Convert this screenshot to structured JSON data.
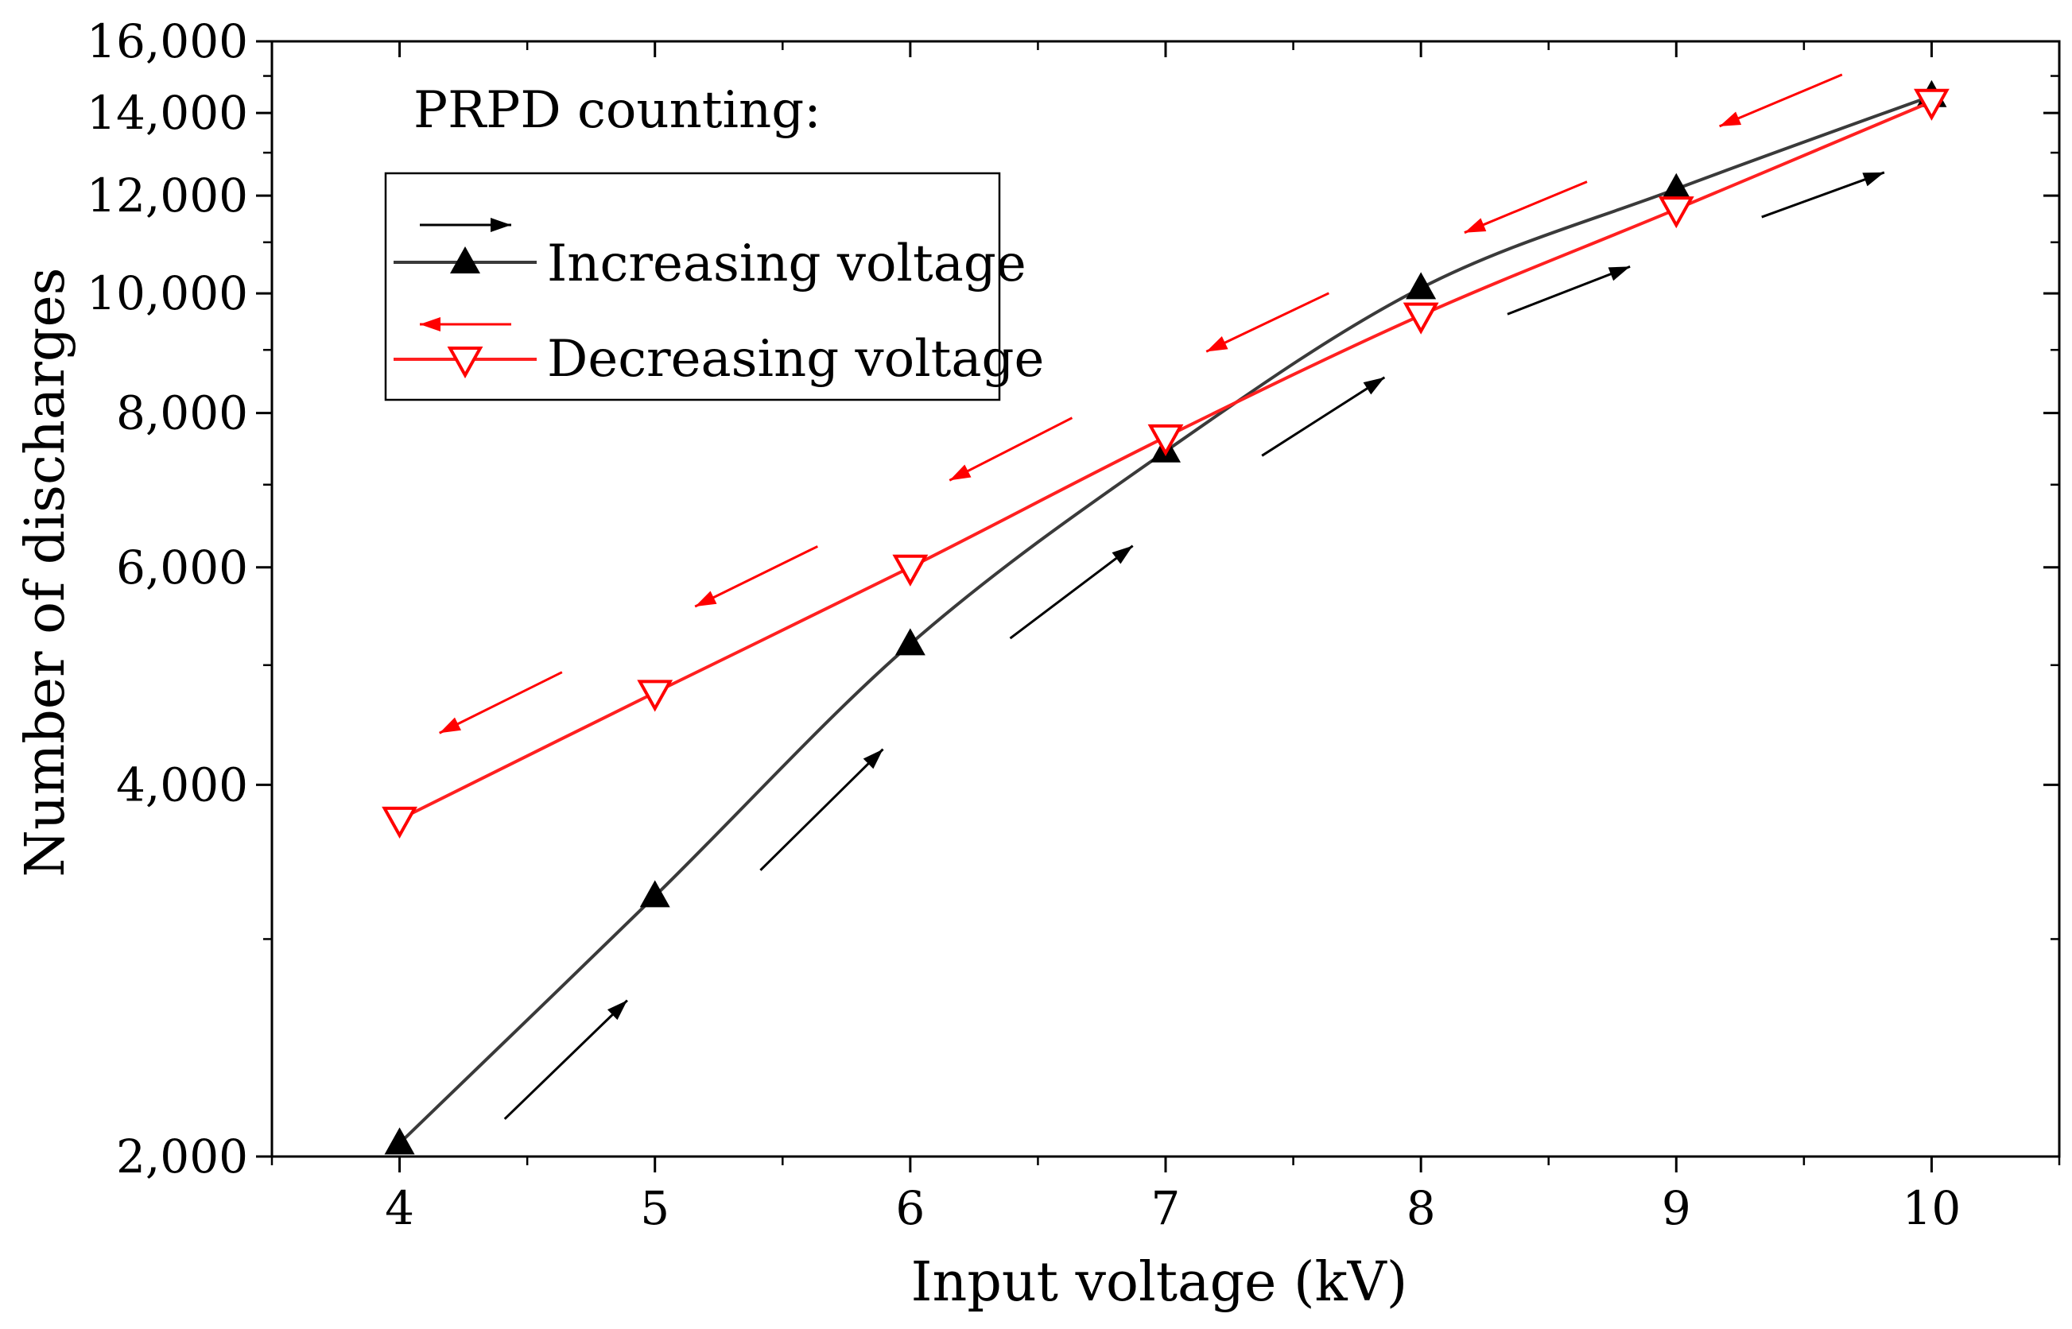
{
  "chart_data": {
    "type": "line",
    "title": "",
    "xlabel": "Input voltage (kV)",
    "ylabel": "Number of discharges",
    "xlim": [
      3.5,
      10.5
    ],
    "ylim": [
      2000,
      16000
    ],
    "yscale": "log",
    "x_ticks": [
      4,
      5,
      6,
      7,
      8,
      9,
      10
    ],
    "x_tick_labels": [
      "4",
      "5",
      "6",
      "7",
      "8",
      "9",
      "10"
    ],
    "y_ticks": [
      2000,
      4000,
      6000,
      8000,
      10000,
      12000,
      14000,
      16000
    ],
    "y_tick_labels": [
      "2,000",
      "4,000",
      "6,000",
      "8,000",
      "10,000",
      "12,000",
      "14,000",
      "16,000"
    ],
    "annotation": "PRPD counting:",
    "legend_position": "top-left",
    "series": [
      {
        "name": "Increasing voltage",
        "color": "#3a3a3a",
        "marker": "triangle-up",
        "marker_color": "#000000",
        "arrow_color": "#000000",
        "x": [
          4,
          5,
          6,
          7,
          8,
          9,
          10
        ],
        "values": [
          2050,
          3250,
          5200,
          7450,
          10100,
          12150,
          14450
        ]
      },
      {
        "name": "Decreasing voltage",
        "color": "#ff2020",
        "marker": "triangle-down-open",
        "marker_color": "#ff0000",
        "arrow_color": "#ff0000",
        "x": [
          4,
          5,
          6,
          7,
          8,
          9,
          10
        ],
        "values": [
          3750,
          4750,
          6000,
          7650,
          9600,
          11700,
          14300
        ]
      }
    ]
  }
}
